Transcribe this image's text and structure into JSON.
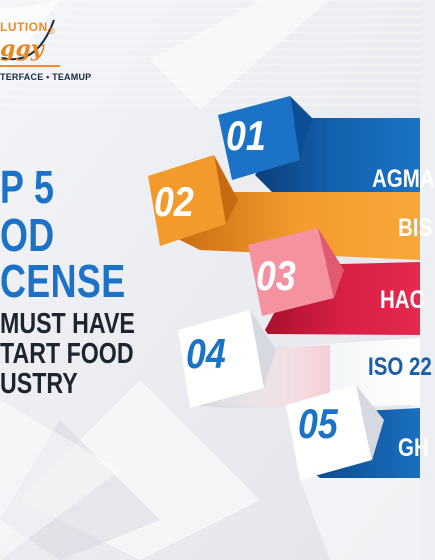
{
  "logo": {
    "top_text": "LUTION",
    "script_text": "ggy",
    "registered": "®",
    "tagline": "TERFACE • TEAMUP"
  },
  "headline": {
    "line1": "P 5",
    "line2": "OD",
    "line3": "CENSE",
    "sub1": "MUST HAVE",
    "sub2": "TART FOOD",
    "sub3": "USTRY"
  },
  "licenses": [
    {
      "number": "01",
      "name": "AGMA"
    },
    {
      "number": "02",
      "name": "BIS"
    },
    {
      "number": "03",
      "name": "HAC"
    },
    {
      "number": "04",
      "name": "ISO 22"
    },
    {
      "number": "05",
      "name": "GH"
    }
  ],
  "colors": {
    "blue": "#1a73c6",
    "dark_blue": "#0d4f96",
    "orange": "#f39a2b",
    "red": "#e5294f",
    "pink": "#f5929f",
    "white": "#ffffff",
    "headline_blue": "#1b72c6"
  }
}
